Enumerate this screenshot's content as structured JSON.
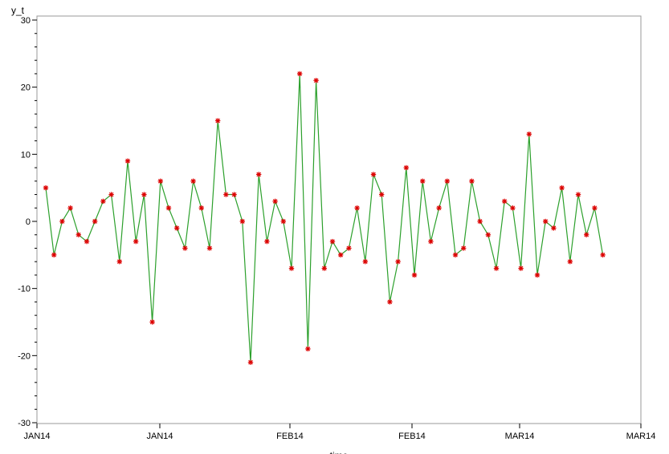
{
  "chart_data": {
    "type": "line",
    "ylabel": "y_t",
    "xlabel": "time",
    "ylim": [
      -30,
      30
    ],
    "yticks": [
      -30,
      -20,
      -10,
      0,
      10,
      20,
      30
    ],
    "xtick_labels": [
      "JAN14",
      "JAN14",
      "FEB14",
      "FEB14",
      "MAR14",
      "MAR14"
    ],
    "grid": false,
    "line_color": "#2ca02c",
    "marker_color": "#dd0000",
    "marker": "asterisk",
    "series": [
      {
        "values": [
          5,
          -5,
          0,
          2,
          -2,
          -3,
          0,
          3,
          4,
          -6,
          9,
          -3,
          4,
          -15,
          6,
          2,
          -1,
          -4,
          6,
          2,
          -4,
          15,
          4,
          4,
          0,
          -21,
          7,
          -3,
          3,
          0,
          -7,
          22,
          -19,
          21,
          -7,
          -3,
          -5,
          -4,
          2,
          -6,
          7,
          4,
          -12,
          -6,
          8,
          -8,
          6,
          -3,
          2,
          6,
          -5,
          -4,
          6,
          0,
          -2,
          -7,
          3,
          2,
          -7,
          13,
          -8,
          0,
          -1,
          5,
          -6,
          4,
          -2,
          2,
          -5
        ]
      }
    ]
  }
}
